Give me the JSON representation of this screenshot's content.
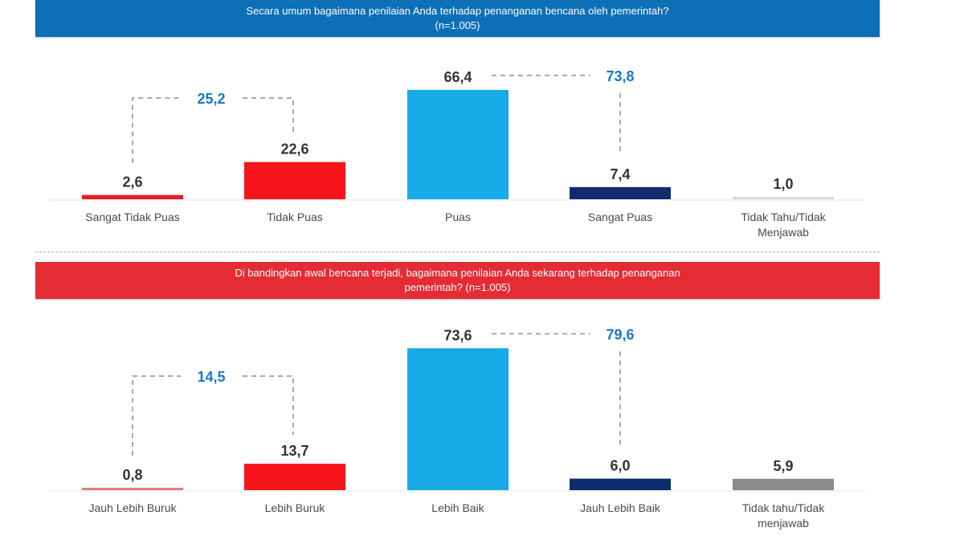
{
  "chart_data": [
    {
      "type": "bar",
      "title": "Secara umum bagaimana penilaian Anda terhadap penanganan bencana oleh pemerintah?",
      "subtitle": "(n=1.005)",
      "categories": [
        "Sangat Tidak Puas",
        "Tidak Puas",
        "Puas",
        "Sangat Puas",
        "Tidak Tahu/Tidak Menjawab"
      ],
      "values": [
        2.6,
        22.6,
        66.4,
        7.4,
        1.0
      ],
      "value_labels": [
        "2,6",
        "22,6",
        "66,4",
        "7,4",
        "1,0"
      ],
      "colors": [
        "#e41e26",
        "#f7141a",
        "#17a9e8",
        "#0f2d6e",
        "#d9d9d9"
      ],
      "annotations": [
        {
          "label": "25,2",
          "between": [
            "Sangat Tidak Puas",
            "Tidak Puas"
          ]
        },
        {
          "label": "73,8",
          "between": [
            "Puas",
            "Sangat Puas"
          ]
        }
      ],
      "ylim": [
        0,
        80
      ],
      "grid": false
    },
    {
      "type": "bar",
      "title": "Di bandingkan awal bencana terjadi, bagaimana penilaian Anda sekarang terhadap penanganan",
      "subtitle": "pemerintah? (n=1.005)",
      "categories": [
        "Jauh Lebih Buruk",
        "Lebih Buruk",
        "Lebih Baik",
        "Jauh Lebih Baik",
        "Tidak tahu/Tidak menjawab"
      ],
      "values": [
        0.8,
        13.7,
        73.6,
        6.0,
        5.9
      ],
      "value_labels": [
        "0,8",
        "13,7",
        "73,6",
        "6,0",
        "5,9"
      ],
      "colors": [
        "#e87b80",
        "#f7141a",
        "#17a9e8",
        "#0f2d6e",
        "#8c8c8c"
      ],
      "annotations": [
        {
          "label": "14,5",
          "between": [
            "Jauh Lebih Buruk",
            "Lebih Buruk"
          ]
        },
        {
          "label": "79,6",
          "between": [
            "Lebih Baik",
            "Jauh Lebih Baik"
          ]
        }
      ],
      "ylim": [
        0,
        80
      ],
      "grid": false
    }
  ]
}
